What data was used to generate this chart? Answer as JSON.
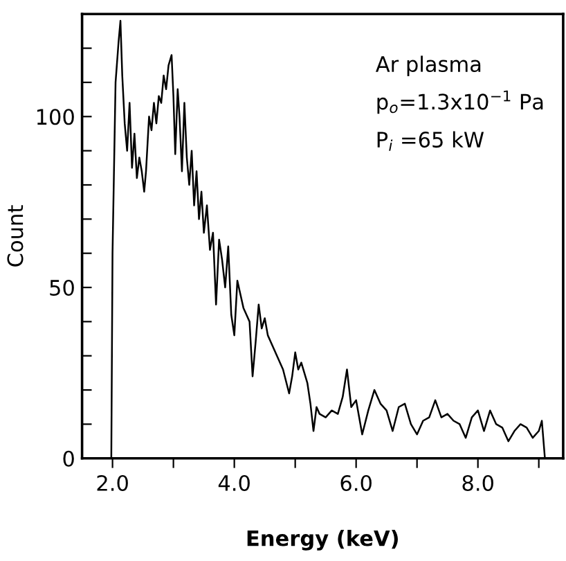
{
  "chart_data": {
    "type": "line",
    "xlabel": "Energy (keV)",
    "ylabel": "Count",
    "annotations": [
      "Ar plasma",
      "p$_{o}$=1.3x10$^{−1}$ Pa",
      "P$_{i}$ =65 kW"
    ],
    "xlim": [
      1.5,
      9.4
    ],
    "ylim": [
      0,
      130
    ],
    "xticks": [
      {
        "value": 2,
        "label": "2.0"
      },
      {
        "value": 3,
        "label": null
      },
      {
        "value": 4,
        "label": "4.0"
      },
      {
        "value": 5,
        "label": null
      },
      {
        "value": 6,
        "label": "6.0"
      },
      {
        "value": 7,
        "label": null
      },
      {
        "value": 8,
        "label": "8.0"
      },
      {
        "value": 9,
        "label": null
      }
    ],
    "yticks": [
      0,
      {
        "value": 10,
        "label": null
      },
      {
        "value": 20,
        "label": null
      },
      {
        "value": 30,
        "label": null
      },
      {
        "value": 40,
        "label": null
      },
      50,
      {
        "value": 60,
        "label": null
      },
      {
        "value": 70,
        "label": null
      },
      {
        "value": 80,
        "label": null
      },
      {
        "value": 90,
        "label": null
      },
      100,
      {
        "value": 110,
        "label": null
      },
      {
        "value": 120,
        "label": null
      }
    ],
    "grid": false,
    "marker": "none",
    "line_style": "solid",
    "series": [
      {
        "color": "#000000",
        "x": [
          1.98,
          2.0,
          2.05,
          2.1,
          2.13,
          2.16,
          2.2,
          2.24,
          2.28,
          2.32,
          2.36,
          2.4,
          2.44,
          2.48,
          2.52,
          2.55,
          2.6,
          2.64,
          2.68,
          2.72,
          2.76,
          2.8,
          2.84,
          2.88,
          2.92,
          2.97,
          3.0,
          3.03,
          3.07,
          3.1,
          3.14,
          3.18,
          3.22,
          3.26,
          3.3,
          3.34,
          3.38,
          3.42,
          3.46,
          3.5,
          3.55,
          3.6,
          3.65,
          3.7,
          3.75,
          3.8,
          3.85,
          3.9,
          3.95,
          4.0,
          4.05,
          4.1,
          4.15,
          4.2,
          4.25,
          4.3,
          4.35,
          4.4,
          4.45,
          4.5,
          4.55,
          4.6,
          4.7,
          4.8,
          4.9,
          4.95,
          5.0,
          5.05,
          5.1,
          5.15,
          5.2,
          5.25,
          5.3,
          5.35,
          5.4,
          5.5,
          5.6,
          5.7,
          5.78,
          5.85,
          5.92,
          6.0,
          6.05,
          6.1,
          6.2,
          6.3,
          6.4,
          6.5,
          6.6,
          6.7,
          6.8,
          6.9,
          7.0,
          7.1,
          7.2,
          7.3,
          7.4,
          7.5,
          7.6,
          7.7,
          7.8,
          7.9,
          8.0,
          8.1,
          8.2,
          8.3,
          8.4,
          8.5,
          8.6,
          8.7,
          8.8,
          8.9,
          9.0,
          9.05,
          9.1
        ],
        "values": [
          0,
          60,
          110,
          122,
          128,
          112,
          98,
          90,
          104,
          85,
          95,
          82,
          88,
          84,
          78,
          84,
          100,
          96,
          104,
          98,
          106,
          104,
          112,
          108,
          115,
          118,
          106,
          89,
          108,
          100,
          84,
          104,
          88,
          80,
          90,
          74,
          84,
          70,
          78,
          66,
          74,
          61,
          66,
          45,
          64,
          58,
          50,
          62,
          42,
          36,
          52,
          48,
          44,
          42,
          40,
          24,
          34,
          45,
          38,
          41,
          36,
          34,
          30,
          26,
          19,
          24,
          31,
          26,
          28,
          25,
          22,
          16,
          8,
          15,
          13,
          12,
          14,
          13,
          18,
          26,
          15,
          17,
          12,
          7,
          14,
          20,
          16,
          14,
          8,
          15,
          16,
          10,
          7,
          11,
          12,
          17,
          12,
          13,
          11,
          10,
          6,
          12,
          14,
          8,
          14,
          10,
          9,
          5,
          8,
          10,
          9,
          6,
          8,
          11,
          0
        ]
      }
    ]
  }
}
